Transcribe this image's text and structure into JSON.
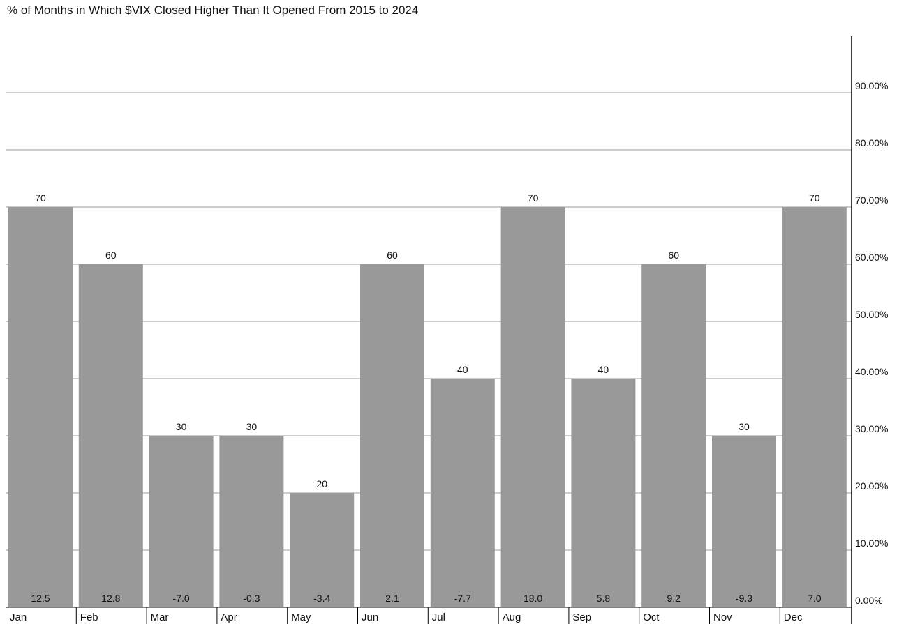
{
  "title": "% of Months in Which $VIX Closed Higher Than It Opened From 2015 to 2024",
  "colors": {
    "bar": "#999999",
    "grid": "#999999",
    "axis": "#000000",
    "background": "#ffffff"
  },
  "chart_data": {
    "type": "bar",
    "title": "% of Months in Which $VIX Closed Higher Than It Opened From 2015 to 2024",
    "categories": [
      "Jan",
      "Feb",
      "Mar",
      "Apr",
      "May",
      "Jun",
      "Jul",
      "Aug",
      "Sep",
      "Oct",
      "Nov",
      "Dec"
    ],
    "values": [
      70,
      60,
      30,
      30,
      20,
      60,
      40,
      70,
      40,
      60,
      30,
      70
    ],
    "value_labels": [
      "70",
      "60",
      "30",
      "30",
      "20",
      "60",
      "40",
      "70",
      "40",
      "60",
      "30",
      "70"
    ],
    "inner_labels": [
      "12.5",
      "12.8",
      "-7.0",
      "-0.3",
      "-3.4",
      "2.1",
      "-7.7",
      "18.0",
      "5.8",
      "9.2",
      "-9.3",
      "7.0"
    ],
    "y_ticks": [
      0,
      10,
      20,
      30,
      40,
      50,
      60,
      70,
      80,
      90
    ],
    "y_tick_labels": [
      "0.00%",
      "10.00%",
      "20.00%",
      "30.00%",
      "40.00%",
      "50.00%",
      "60.00%",
      "70.00%",
      "80.00%",
      "90.00%"
    ],
    "ylim": [
      0,
      100
    ],
    "y_axis_side": "right",
    "grid": true,
    "legend": false
  }
}
